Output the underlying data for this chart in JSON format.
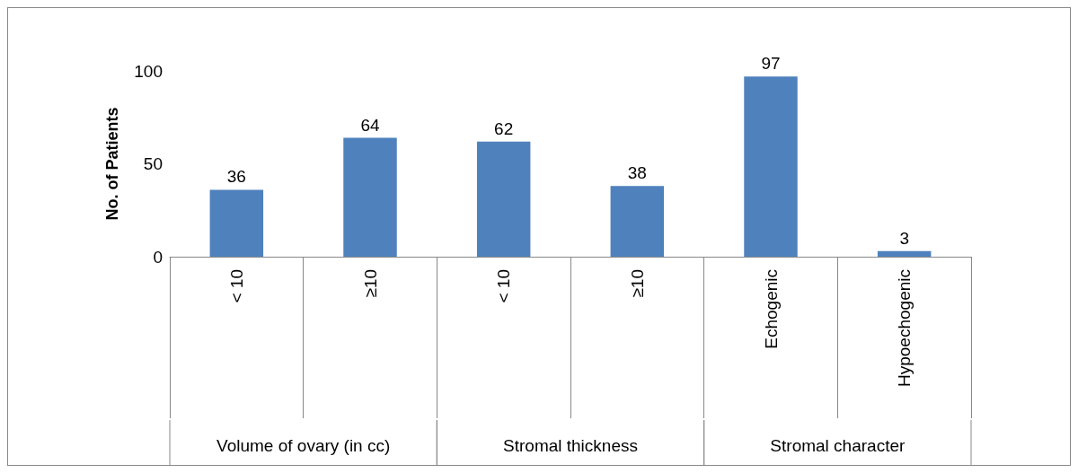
{
  "chart_data": {
    "type": "bar",
    "ylabel": "No. of Patients",
    "categories": [
      "< 10",
      "≥10",
      "< 10",
      "≥10",
      "Echogenic",
      "Hypoechogenic"
    ],
    "values": [
      36,
      64,
      62,
      38,
      97,
      3
    ],
    "color": "#4f81bd",
    "ylim": [
      0,
      100
    ],
    "yticks": [
      0,
      50,
      100
    ],
    "grid": false,
    "data_labels": true,
    "annotations": [
      "Volume of ovary (in cc)",
      "Stromal thickness",
      "Stromal character"
    ]
  }
}
